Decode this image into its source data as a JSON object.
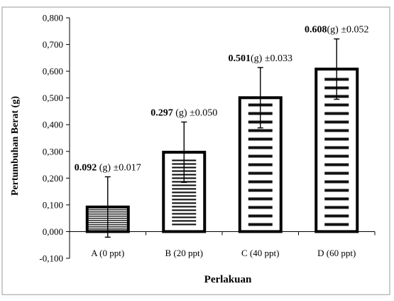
{
  "chart_data": {
    "type": "bar",
    "title": "",
    "xlabel": "Perlakuan",
    "ylabel": "Pertumbuhan Berat (g)",
    "ylim": [
      -0.1,
      0.8
    ],
    "y_ticks": [
      "-0,100",
      "0,000",
      "0,100",
      "0,200",
      "0,300",
      "0,400",
      "0,500",
      "0,600",
      "0,700",
      "0,800"
    ],
    "y_tick_values": [
      -0.1,
      0,
      0.1,
      0.2,
      0.3,
      0.4,
      0.5,
      0.6,
      0.7,
      0.8
    ],
    "categories": [
      "A (0 ppt)",
      "B (20 ppt)",
      "C (40 ppt)",
      "D (60 ppt)"
    ],
    "values": [
      0.092,
      0.297,
      0.501,
      0.608
    ],
    "errors": [
      0.113,
      0.113,
      0.113,
      0.113
    ],
    "grid": false,
    "legend": "none",
    "data_labels": [
      {
        "value": "0.092",
        "unit": " (g) ",
        "sd": "±0.017"
      },
      {
        "value": "0.297",
        "unit": " (g) ",
        "sd": "±0.050"
      },
      {
        "value": "0.501",
        "unit": "(g) ",
        "sd": "±0.033"
      },
      {
        "value": "0.608",
        "unit": "(g) ",
        "sd": "±0.052"
      }
    ],
    "colors": {
      "bar_fill": "#ffffff",
      "bar_stroke": "#000000",
      "hatch": "#000000",
      "axis": "#000000",
      "frame": "#808080"
    }
  }
}
